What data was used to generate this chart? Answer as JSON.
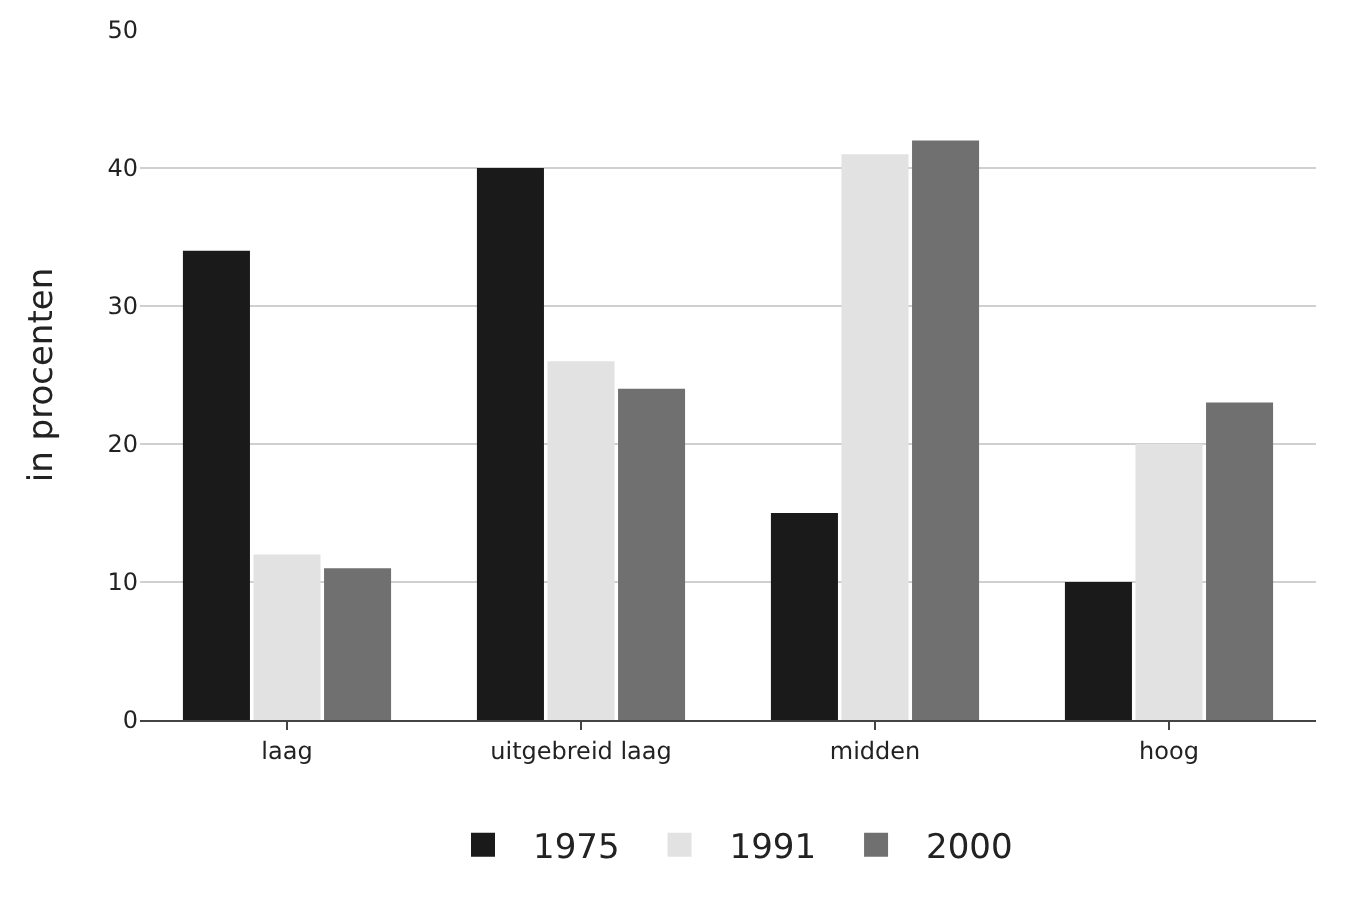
{
  "chart_data": {
    "type": "bar",
    "ylabel": "in procenten",
    "categories": [
      "laag",
      "uitgebreid laag",
      "midden",
      "hoog"
    ],
    "series": [
      {
        "name": "1975",
        "color": "#1a1a1a",
        "values": [
          34,
          40,
          15,
          10
        ]
      },
      {
        "name": "1991",
        "color": "#e2e2e2",
        "values": [
          12,
          26,
          41,
          20
        ]
      },
      {
        "name": "2000",
        "color": "#707070",
        "values": [
          11,
          24,
          42,
          23
        ]
      }
    ],
    "ylim": [
      0,
      50
    ],
    "yticks": [
      0,
      10,
      20,
      30,
      40,
      50
    ],
    "grid": "y",
    "legend": "bottom"
  }
}
